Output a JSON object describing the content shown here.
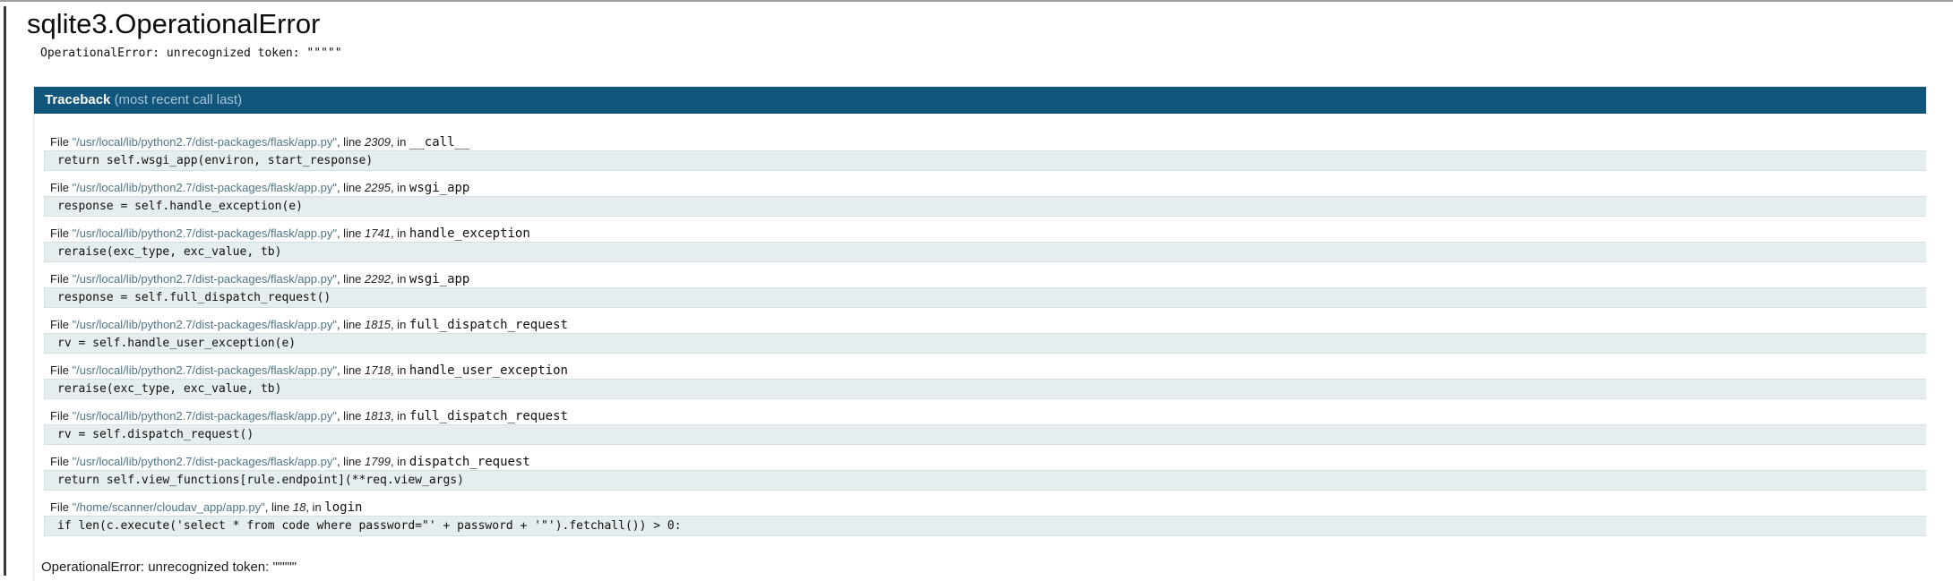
{
  "page": {
    "title": "sqlite3.OperationalError",
    "summary": "OperationalError: unrecognized token: \"\"\"\"\""
  },
  "traceback": {
    "header": {
      "title": "Traceback",
      "subtitle": "(most recent call last)"
    },
    "frames": [
      {
        "file_label": "File ",
        "filename": "\"/usr/local/lib/python2.7/dist-packages/flask/app.py\"",
        "line_label": ", line ",
        "line": "2309",
        "in_label": ", in ",
        "function": "__call__",
        "code": "return self.wsgi_app(environ, start_response)"
      },
      {
        "file_label": "File ",
        "filename": "\"/usr/local/lib/python2.7/dist-packages/flask/app.py\"",
        "line_label": ", line ",
        "line": "2295",
        "in_label": ", in ",
        "function": "wsgi_app",
        "code": "response = self.handle_exception(e)"
      },
      {
        "file_label": "File ",
        "filename": "\"/usr/local/lib/python2.7/dist-packages/flask/app.py\"",
        "line_label": ", line ",
        "line": "1741",
        "in_label": ", in ",
        "function": "handle_exception",
        "code": "reraise(exc_type, exc_value, tb)"
      },
      {
        "file_label": "File ",
        "filename": "\"/usr/local/lib/python2.7/dist-packages/flask/app.py\"",
        "line_label": ", line ",
        "line": "2292",
        "in_label": ", in ",
        "function": "wsgi_app",
        "code": "response = self.full_dispatch_request()"
      },
      {
        "file_label": "File ",
        "filename": "\"/usr/local/lib/python2.7/dist-packages/flask/app.py\"",
        "line_label": ", line ",
        "line": "1815",
        "in_label": ", in ",
        "function": "full_dispatch_request",
        "code": "rv = self.handle_user_exception(e)"
      },
      {
        "file_label": "File ",
        "filename": "\"/usr/local/lib/python2.7/dist-packages/flask/app.py\"",
        "line_label": ", line ",
        "line": "1718",
        "in_label": ", in ",
        "function": "handle_user_exception",
        "code": "reraise(exc_type, exc_value, tb)"
      },
      {
        "file_label": "File ",
        "filename": "\"/usr/local/lib/python2.7/dist-packages/flask/app.py\"",
        "line_label": ", line ",
        "line": "1813",
        "in_label": ", in ",
        "function": "full_dispatch_request",
        "code": "rv = self.dispatch_request()"
      },
      {
        "file_label": "File ",
        "filename": "\"/usr/local/lib/python2.7/dist-packages/flask/app.py\"",
        "line_label": ", line ",
        "line": "1799",
        "in_label": ", in ",
        "function": "dispatch_request",
        "code": "return self.view_functions[rule.endpoint](**req.view_args)"
      },
      {
        "file_label": "File ",
        "filename": "\"/home/scanner/cloudav_app/app.py\"",
        "line_label": ", line ",
        "line": "18",
        "in_label": ", in ",
        "function": "login",
        "code": "if len(c.execute('select * from code where password=\"' + password + '\"').fetchall()) > 0:"
      }
    ],
    "exception": "OperationalError: unrecognized token: \"\"\"\"\""
  },
  "colors": {
    "header_bg": "#11557C",
    "header_subtitle": "#A6C6D6",
    "filename": "#4D7587",
    "source_bg": "#E6EDEF",
    "source_border": "#D3DFE3"
  }
}
